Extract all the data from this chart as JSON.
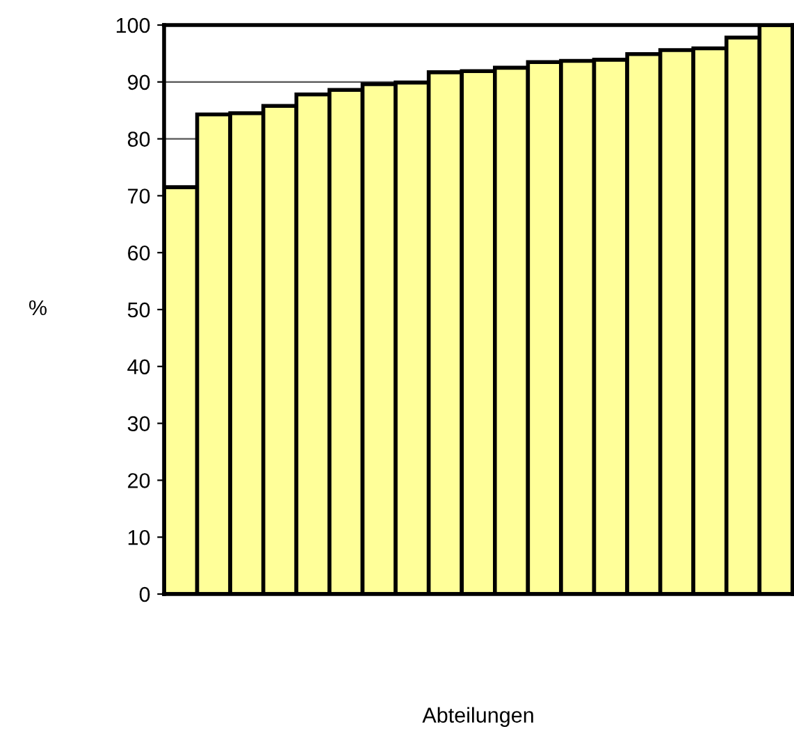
{
  "chart_data": {
    "type": "bar",
    "ylabel": "%",
    "xlabel": "Abteilungen",
    "categories": [
      null,
      null,
      null,
      null,
      null,
      null,
      null,
      null,
      null,
      null,
      null,
      null,
      null,
      null,
      null,
      null,
      null,
      null,
      null
    ],
    "values": [
      71.5,
      84.3,
      84.5,
      85.8,
      87.8,
      88.6,
      89.6,
      89.9,
      91.7,
      91.9,
      92.5,
      93.5,
      93.7,
      93.9,
      94.9,
      95.6,
      95.9,
      97.8,
      100
    ],
    "color": "#ffff99",
    "ylim": [
      0,
      100
    ],
    "yticks": [
      0,
      10,
      20,
      30,
      40,
      50,
      60,
      70,
      80,
      90,
      100
    ],
    "grid": "y"
  }
}
